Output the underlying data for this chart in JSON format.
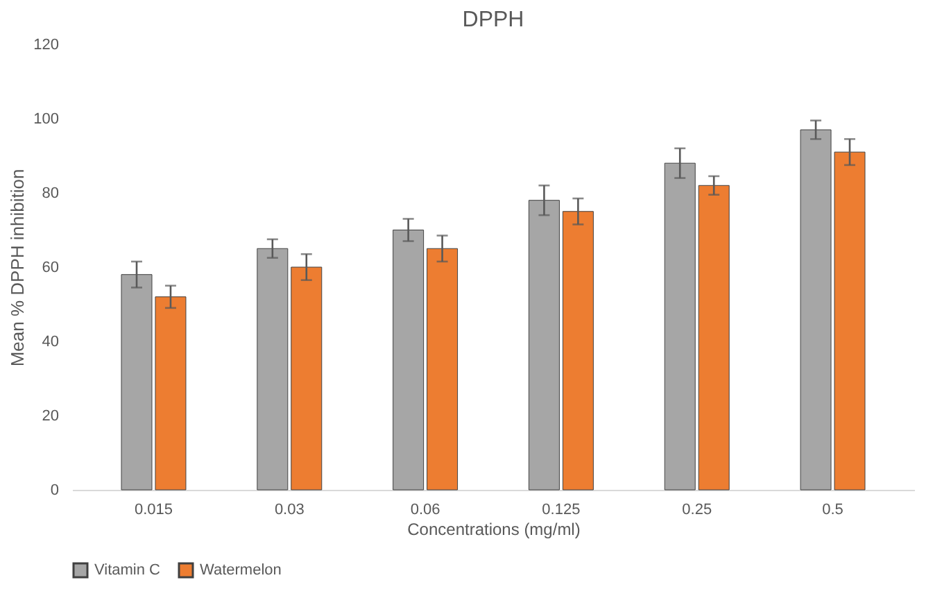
{
  "chart_data": {
    "type": "bar",
    "title": "DPPH",
    "xlabel": "Concentrations (mg/ml)",
    "ylabel": "Mean % DPPH inhibition",
    "categories": [
      "0.015",
      "0.03",
      "0.06",
      "0.125",
      "0.25",
      "0.5"
    ],
    "series": [
      {
        "name": "Vitamin C",
        "color": "#a6a6a6",
        "values": [
          58,
          65,
          70,
          78,
          88,
          97
        ],
        "errors": [
          3.5,
          2.5,
          3,
          4,
          4,
          2.5
        ]
      },
      {
        "name": "Watermelon",
        "color": "#ed7d31",
        "values": [
          52,
          60,
          65,
          75,
          82,
          91
        ],
        "errors": [
          3,
          3.5,
          3.5,
          3.5,
          2.5,
          3.5
        ]
      }
    ],
    "ylim": [
      0,
      120
    ],
    "yticks": [
      0,
      20,
      40,
      60,
      80,
      100,
      120
    ],
    "grid": false,
    "legend": "bottom"
  }
}
